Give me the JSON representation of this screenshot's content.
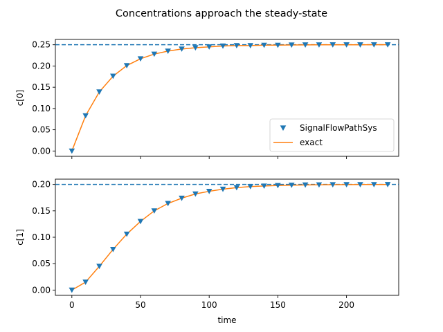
{
  "figure": {
    "title": "Concentrations approach the steady-state",
    "xlabel": "time",
    "colors": {
      "marker": "#1f77b4",
      "exact": "#ff7f0e",
      "steady": "#1f77b4"
    }
  },
  "chart_data": [
    {
      "type": "line",
      "ylabel": "c[0]",
      "xlim": [
        -12,
        238
      ],
      "ylim": [
        -0.0125,
        0.2625
      ],
      "xticks": [
        0,
        50,
        100,
        150,
        200
      ],
      "yticks": [
        "0.00",
        "0.05",
        "0.10",
        "0.15",
        "0.20",
        "0.25"
      ],
      "show_xtick_labels": false,
      "steady_state": 0.25,
      "legend": {
        "placement": "lower-right",
        "entries": [
          "SignalFlowPathSys",
          "exact"
        ]
      },
      "series": [
        {
          "name": "SignalFlowPathSys",
          "style": "triangle-down-markers",
          "x": [
            0,
            10,
            20,
            30,
            40,
            50,
            60,
            70,
            80,
            90,
            100,
            110,
            120,
            130,
            140,
            150,
            160,
            170,
            180,
            190,
            200,
            210,
            220,
            230
          ],
          "y": [
            0.0,
            0.083,
            0.139,
            0.176,
            0.201,
            0.217,
            0.228,
            0.235,
            0.24,
            0.243,
            0.245,
            0.247,
            0.248,
            0.248,
            0.249,
            0.249,
            0.2495,
            0.2497,
            0.2498,
            0.2499,
            0.2499,
            0.2499,
            0.25,
            0.25
          ]
        },
        {
          "name": "exact",
          "style": "line",
          "x": [
            0,
            10,
            20,
            30,
            40,
            50,
            60,
            70,
            80,
            90,
            100,
            110,
            120,
            130,
            140,
            150,
            160,
            170,
            180,
            190,
            200,
            210,
            220,
            230
          ],
          "y": [
            0.0,
            0.083,
            0.139,
            0.176,
            0.201,
            0.217,
            0.228,
            0.235,
            0.24,
            0.243,
            0.245,
            0.247,
            0.248,
            0.248,
            0.249,
            0.249,
            0.2495,
            0.2497,
            0.2498,
            0.2499,
            0.2499,
            0.2499,
            0.25,
            0.25
          ]
        }
      ]
    },
    {
      "type": "line",
      "ylabel": "c[1]",
      "xlim": [
        -12,
        238
      ],
      "ylim": [
        -0.01,
        0.21
      ],
      "xticks": [
        0,
        50,
        100,
        150,
        200
      ],
      "xtick_labels": [
        "0",
        "50",
        "100",
        "150",
        "200"
      ],
      "yticks": [
        "0.00",
        "0.05",
        "0.10",
        "0.15",
        "0.20"
      ],
      "show_xtick_labels": true,
      "steady_state": 0.2,
      "series": [
        {
          "name": "SignalFlowPathSys",
          "style": "triangle-down-markers",
          "x": [
            0,
            10,
            20,
            30,
            40,
            50,
            60,
            70,
            80,
            90,
            100,
            110,
            120,
            130,
            140,
            150,
            160,
            170,
            180,
            190,
            200,
            210,
            220,
            230
          ],
          "y": [
            0.0,
            0.015,
            0.045,
            0.077,
            0.106,
            0.13,
            0.15,
            0.164,
            0.174,
            0.182,
            0.187,
            0.191,
            0.194,
            0.196,
            0.197,
            0.198,
            0.1986,
            0.199,
            0.1993,
            0.1995,
            0.1997,
            0.1998,
            0.1998,
            0.1999
          ]
        },
        {
          "name": "exact",
          "style": "line",
          "x": [
            0,
            10,
            20,
            30,
            40,
            50,
            60,
            70,
            80,
            90,
            100,
            110,
            120,
            130,
            140,
            150,
            160,
            170,
            180,
            190,
            200,
            210,
            220,
            230
          ],
          "y": [
            0.0,
            0.015,
            0.045,
            0.077,
            0.106,
            0.13,
            0.15,
            0.164,
            0.174,
            0.182,
            0.187,
            0.191,
            0.194,
            0.196,
            0.197,
            0.198,
            0.1986,
            0.199,
            0.1993,
            0.1995,
            0.1997,
            0.1998,
            0.1998,
            0.1999
          ]
        }
      ]
    }
  ]
}
